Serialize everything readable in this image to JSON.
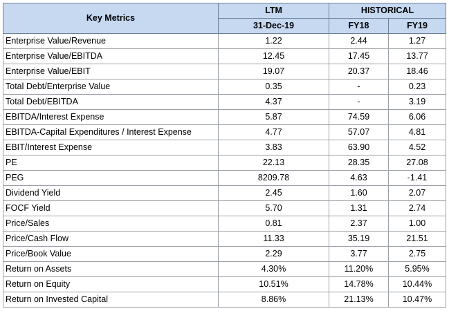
{
  "header": {
    "key_metrics": "Key Metrics",
    "ltm": "LTM",
    "historical": "HISTORICAL",
    "ltm_date": "31-Dec-19",
    "fy18": "FY18",
    "fy19": "FY19"
  },
  "rows": [
    {
      "label": "Enterprise Value/Revenue",
      "ltm": "1.22",
      "fy18": "2.44",
      "fy19": "1.27"
    },
    {
      "label": "Enterprise Value/EBITDA",
      "ltm": "12.45",
      "fy18": "17.45",
      "fy19": "13.77"
    },
    {
      "label": "Enterprise Value/EBIT",
      "ltm": "19.07",
      "fy18": "20.37",
      "fy19": "18.46"
    },
    {
      "label": "Total Debt/Enterprise Value",
      "ltm": "0.35",
      "fy18": "-",
      "fy19": "0.23"
    },
    {
      "label": "Total Debt/EBITDA",
      "ltm": "4.37",
      "fy18": "-",
      "fy19": "3.19"
    },
    {
      "label": "EBITDA/Interest Expense",
      "ltm": "5.87",
      "fy18": "74.59",
      "fy19": "6.06"
    },
    {
      "label": "EBITDA-Capital Expenditures / Interest Expense",
      "ltm": "4.77",
      "fy18": "57.07",
      "fy19": "4.81"
    },
    {
      "label": "EBIT/Interest Expense",
      "ltm": "3.83",
      "fy18": "63.90",
      "fy19": "4.52"
    },
    {
      "label": "PE",
      "ltm": "22.13",
      "fy18": "28.35",
      "fy19": "27.08"
    },
    {
      "label": "PEG",
      "ltm": "8209.78",
      "fy18": "4.63",
      "fy19": "-1.41"
    },
    {
      "label": "Dividend Yield",
      "ltm": "2.45",
      "fy18": "1.60",
      "fy19": "2.07"
    },
    {
      "label": "FOCF Yield",
      "ltm": "5.70",
      "fy18": "1.31",
      "fy19": "2.74"
    },
    {
      "label": "Price/Sales",
      "ltm": "0.81",
      "fy18": "2.37",
      "fy19": "1.00"
    },
    {
      "label": "Price/Cash Flow",
      "ltm": "11.33",
      "fy18": "35.19",
      "fy19": "21.51"
    },
    {
      "label": "Price/Book Value",
      "ltm": "2.29",
      "fy18": "3.77",
      "fy19": "2.75"
    },
    {
      "label": "Return on Assets",
      "ltm": "4.30%",
      "fy18": "11.20%",
      "fy19": "5.95%"
    },
    {
      "label": "Return on Equity",
      "ltm": "10.51%",
      "fy18": "14.78%",
      "fy19": "10.44%"
    },
    {
      "label": "Return on Invested Capital",
      "ltm": "8.86%",
      "fy18": "21.13%",
      "fy19": "10.47%"
    }
  ],
  "colors": {
    "header_fill": "#c6d9f1",
    "grid_line": "#9aa0a6"
  }
}
